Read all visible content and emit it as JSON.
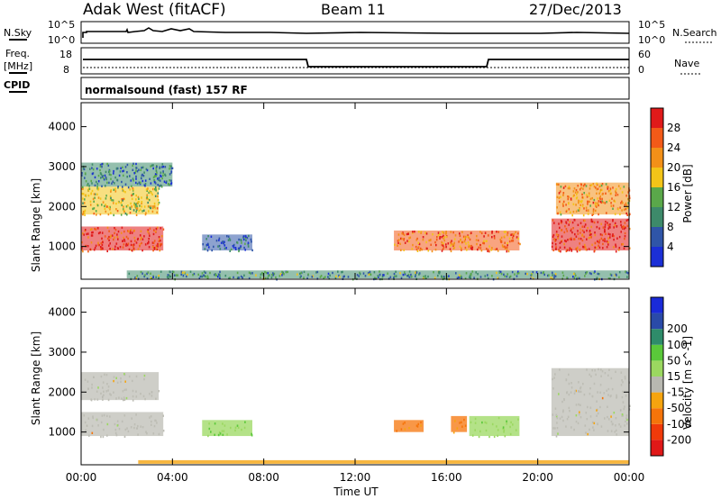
{
  "header": {
    "title": "Adak West (fitACF)",
    "beam": "Beam 11",
    "date": "27/Dec/2013"
  },
  "sky_panel": {
    "left_label": "N.Sky",
    "right_label": "N.Search",
    "top_tick": "10^5",
    "bottom_tick": "10^0"
  },
  "freq_panel": {
    "left_label_1": "Freq.",
    "left_label_2": "[MHz]",
    "right_label": "Nave",
    "left_ticks": [
      "18",
      "8"
    ],
    "right_ticks": [
      "60",
      "0"
    ]
  },
  "cpid_panel": {
    "label": "CPID",
    "text": "normalsound (fast) 157 RF"
  },
  "colors": {
    "power_scale": [
      "#1b2fd6",
      "#2f55a8",
      "#3d8a6a",
      "#5aa84a",
      "#f3c418",
      "#f39018",
      "#f35a18",
      "#e01a1a"
    ],
    "velocity_scale": [
      "#e01818",
      "#f03a0a",
      "#f5740a",
      "#f5a40f",
      "#b8b8b0",
      "#9bd860",
      "#5ac83a",
      "#2e8c6a",
      "#2a4aa8",
      "#1a2ad8"
    ],
    "ground_scatter": "#bdbdb5"
  },
  "chart_data": [
    {
      "type": "heatmap",
      "panel": "power",
      "xlabel": "",
      "ylabel": "Slant Range [km]",
      "xlim": [
        "00:00",
        "24:00"
      ],
      "ylim": [
        180,
        4600
      ],
      "yticks": [
        "1000",
        "2000",
        "3000",
        "4000"
      ],
      "colorbar": {
        "label": "Power [dB]",
        "ticks": [
          "4",
          "8",
          "12",
          "16",
          "20",
          "24",
          "28"
        ],
        "range": [
          0,
          32
        ]
      },
      "echo_regions": [
        {
          "t_start": 0.0,
          "t_end": 3.6,
          "range_start": 900,
          "range_end": 1500,
          "value_db": 28
        },
        {
          "t_start": 0.0,
          "t_end": 3.4,
          "range_start": 1800,
          "range_end": 2500,
          "value_db": 18
        },
        {
          "t_start": 0.0,
          "t_end": 4.0,
          "range_start": 2500,
          "range_end": 3100,
          "value_db": 8
        },
        {
          "t_start": 5.3,
          "t_end": 7.5,
          "range_start": 900,
          "range_end": 1300,
          "value_db": 6
        },
        {
          "t_start": 2.0,
          "t_end": 24.0,
          "range_start": 200,
          "range_end": 400,
          "value_db": 10
        },
        {
          "t_start": 13.7,
          "t_end": 19.2,
          "range_start": 900,
          "range_end": 1400,
          "value_db": 24
        },
        {
          "t_start": 20.6,
          "t_end": 24.0,
          "range_start": 900,
          "range_end": 1700,
          "value_db": 28
        },
        {
          "t_start": 20.8,
          "t_end": 24.0,
          "range_start": 1800,
          "range_end": 2600,
          "value_db": 22
        }
      ]
    },
    {
      "type": "heatmap",
      "panel": "velocity",
      "xlabel": "Time UT",
      "ylabel": "Slant Range [km]",
      "xlim": [
        "00:00",
        "24:00"
      ],
      "ylim": [
        180,
        4600
      ],
      "xticks": [
        "00:00",
        "04:00",
        "08:00",
        "12:00",
        "16:00",
        "20:00",
        "00:00"
      ],
      "yticks": [
        "1000",
        "2000",
        "3000",
        "4000"
      ],
      "colorbar": {
        "label": "Velocity [m s^-1]",
        "ticks": [
          "-200",
          "-100",
          "-50",
          "-15",
          "15",
          "50",
          "100",
          "200"
        ]
      },
      "echo_regions": [
        {
          "t_start": 0.0,
          "t_end": 3.6,
          "range_start": 900,
          "range_end": 1500,
          "value_ms": 0,
          "ground_scatter": true
        },
        {
          "t_start": 0.0,
          "t_end": 3.4,
          "range_start": 1800,
          "range_end": 2500,
          "value_ms": 0,
          "ground_scatter": true
        },
        {
          "t_start": 5.3,
          "t_end": 7.5,
          "range_start": 900,
          "range_end": 1300,
          "value_ms": 40
        },
        {
          "t_start": 13.7,
          "t_end": 15.0,
          "range_start": 1000,
          "range_end": 1300,
          "value_ms": -60
        },
        {
          "t_start": 16.2,
          "t_end": 16.9,
          "range_start": 1000,
          "range_end": 1400,
          "value_ms": -60
        },
        {
          "t_start": 17.0,
          "t_end": 19.2,
          "range_start": 900,
          "range_end": 1400,
          "value_ms": 40
        },
        {
          "t_start": 20.6,
          "t_end": 24.0,
          "range_start": 900,
          "range_end": 2600,
          "value_ms": 0,
          "ground_scatter": true
        }
      ]
    }
  ]
}
